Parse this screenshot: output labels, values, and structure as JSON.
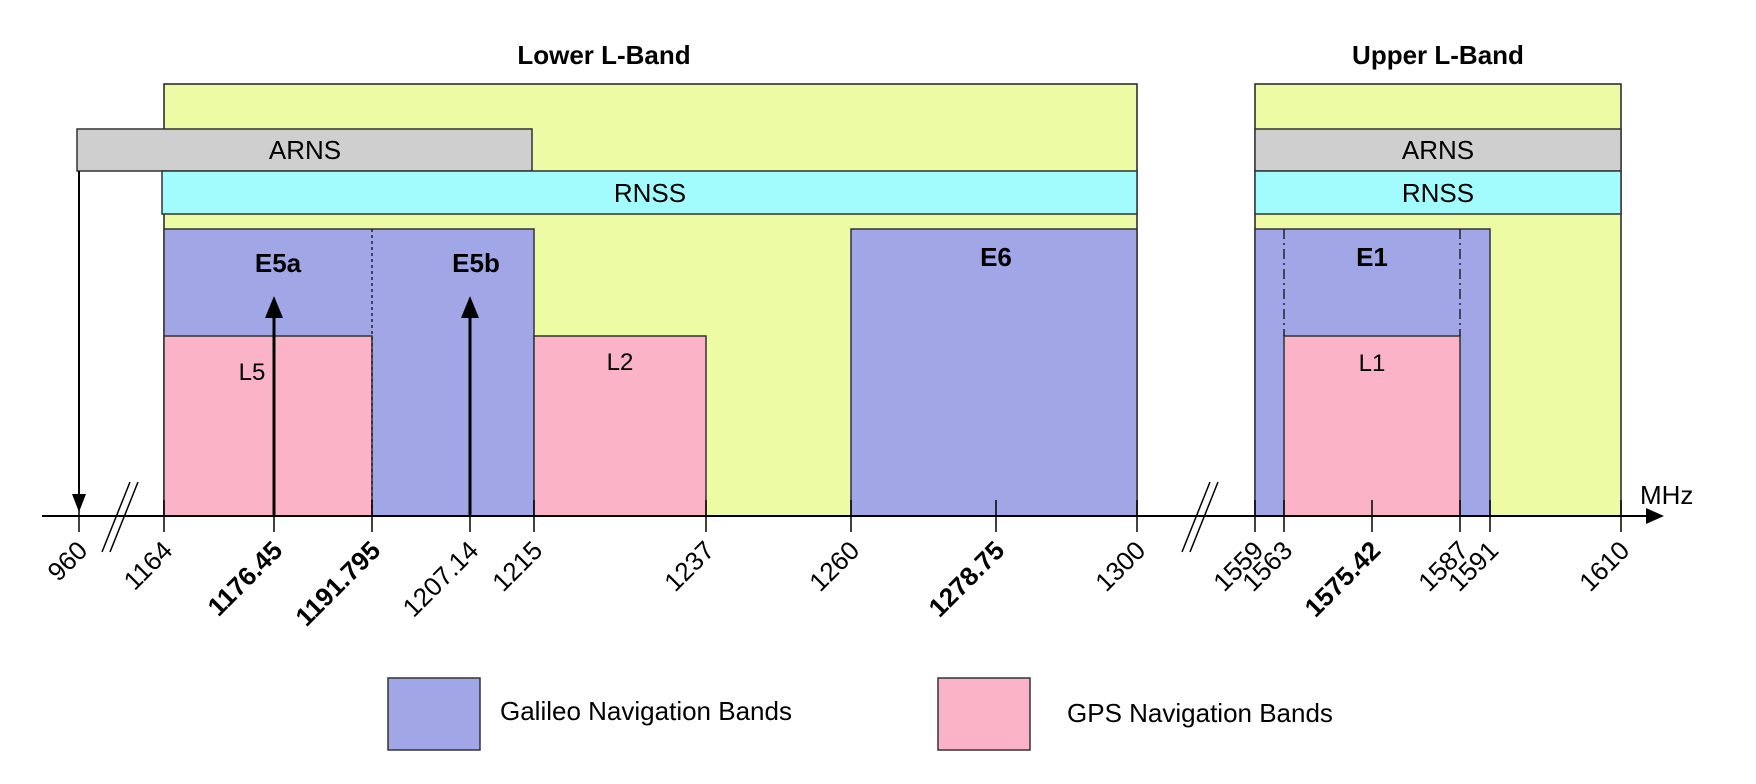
{
  "colors": {
    "l_band": "#EDFBA4",
    "arns": "#CFCFCF",
    "rnss": "#A2FBFD",
    "galileo": "#A0A6E6",
    "gps": "#FBB3C7"
  },
  "headers": {
    "lower": "Lower L-Band",
    "upper": "Upper L-Band"
  },
  "services": {
    "arns_lower": "ARNS",
    "rnss_lower": "RNSS",
    "arns_upper": "ARNS",
    "rnss_upper": "RNSS"
  },
  "galileo_bands": {
    "e5a": "E5a",
    "e5b": "E5b",
    "e6": "E6",
    "e1": "E1"
  },
  "gps_bands": {
    "l5": "L5",
    "l2": "L2",
    "l1": "L1"
  },
  "axis": {
    "unit": "MHz",
    "ticks": [
      {
        "label": "960",
        "bold": false
      },
      {
        "label": "1164",
        "bold": false
      },
      {
        "label": "1176.45",
        "bold": true
      },
      {
        "label": "1191.795",
        "bold": true
      },
      {
        "label": "1207.14",
        "bold": false
      },
      {
        "label": "1215",
        "bold": false
      },
      {
        "label": "1237",
        "bold": false
      },
      {
        "label": "1260",
        "bold": false
      },
      {
        "label": "1278.75",
        "bold": true
      },
      {
        "label": "1300",
        "bold": false
      },
      {
        "label": "1559",
        "bold": false
      },
      {
        "label": "1563",
        "bold": false
      },
      {
        "label": "1575.42",
        "bold": true
      },
      {
        "label": "1587",
        "bold": false
      },
      {
        "label": "1591",
        "bold": false
      },
      {
        "label": "1610",
        "bold": false
      }
    ]
  },
  "legend": {
    "galileo": "Galileo Navigation Bands",
    "gps": "GPS Navigation Bands"
  }
}
